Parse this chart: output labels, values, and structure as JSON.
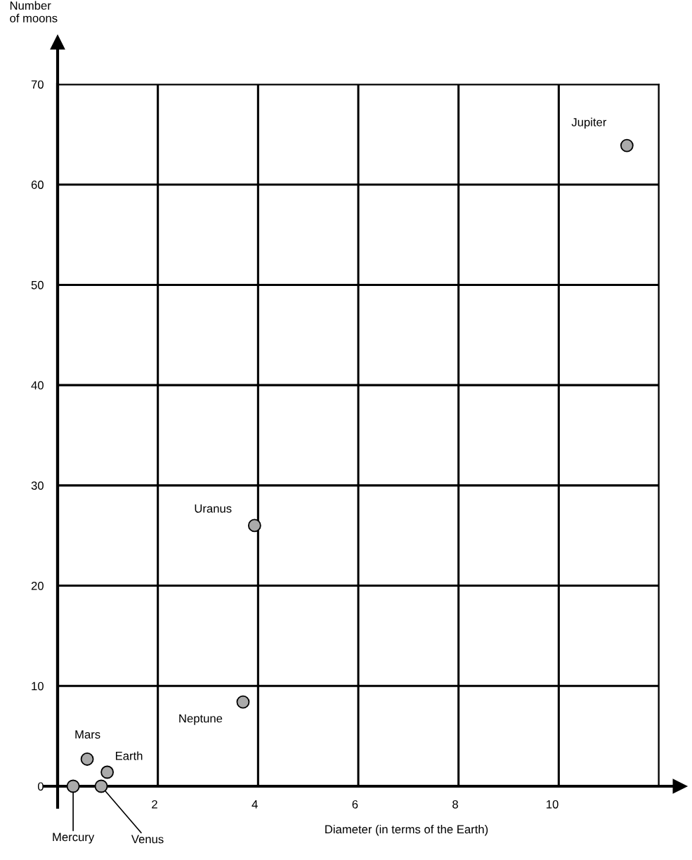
{
  "chart_data": {
    "type": "scatter",
    "xlabel": "Diameter (in terms of the Earth)",
    "ylabel": "Number\nof moons",
    "x": [
      0.31,
      0.87,
      0.99,
      0.59,
      11.36,
      3.93,
      3.7
    ],
    "values": [
      0,
      0,
      1.4,
      2.7,
      63.9,
      26,
      8.4
    ],
    "color": "#aaaaaa",
    "marker": "circle",
    "xlim": [
      0,
      12
    ],
    "ylim": [
      0,
      70
    ],
    "xticks": [
      2,
      4,
      6,
      8,
      10,
      {
        "value": 12,
        "label": null
      }
    ],
    "yticks": [
      0,
      10,
      20,
      30,
      40,
      50,
      60,
      70
    ],
    "grid": true,
    "annotations": [
      {
        "text": "Mercury",
        "x": 0.31,
        "y": 0
      },
      {
        "text": "Venus",
        "x": 0.87,
        "y": 0
      },
      {
        "text": "Earth",
        "x": 0.99,
        "y": 1.4
      },
      {
        "text": "Mars",
        "x": 0.59,
        "y": 2.7
      },
      {
        "text": "Jupiter",
        "x": 11.36,
        "y": 63.9
      },
      {
        "text": "Uranus",
        "x": 3.93,
        "y": 26
      },
      {
        "text": "Neptune",
        "x": 3.7,
        "y": 8.4
      }
    ]
  }
}
